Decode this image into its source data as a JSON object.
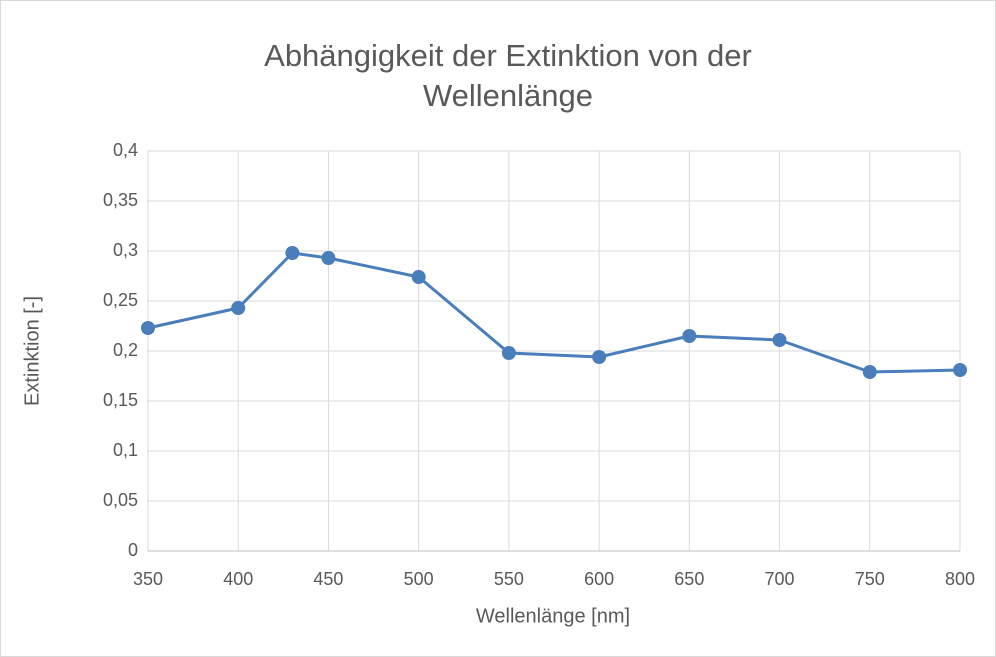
{
  "chart_data": {
    "type": "line",
    "title": "Abhängigkeit der Extinktion von der Wellenlänge",
    "x_label": "Wellenlänge [nm]",
    "y_label": "Extinktion [-]",
    "x": [
      350,
      400,
      430,
      450,
      500,
      550,
      600,
      650,
      700,
      750,
      800
    ],
    "series": [
      {
        "color": "#4a7ebb",
        "values": [
          0.223,
          0.243,
          0.298,
          0.293,
          0.274,
          0.198,
          0.194,
          0.215,
          0.211,
          0.179,
          0.181
        ]
      }
    ],
    "xlim": [
      350,
      800
    ],
    "xticks": [
      350,
      400,
      450,
      500,
      550,
      600,
      650,
      700,
      750,
      800
    ],
    "ylim": [
      0,
      0.4
    ],
    "yticks": [
      0,
      {
        "value": 0.05,
        "label": "0,05"
      },
      {
        "value": 0.1,
        "label": "0,1"
      },
      {
        "value": 0.15,
        "label": "0,15"
      },
      {
        "value": 0.2,
        "label": "0,2"
      },
      {
        "value": 0.25,
        "label": "0,25"
      },
      {
        "value": 0.3,
        "label": "0,3"
      },
      {
        "value": 0.35,
        "label": "0,35"
      },
      {
        "value": 0.4,
        "label": "0,4"
      }
    ],
    "grid": true
  }
}
